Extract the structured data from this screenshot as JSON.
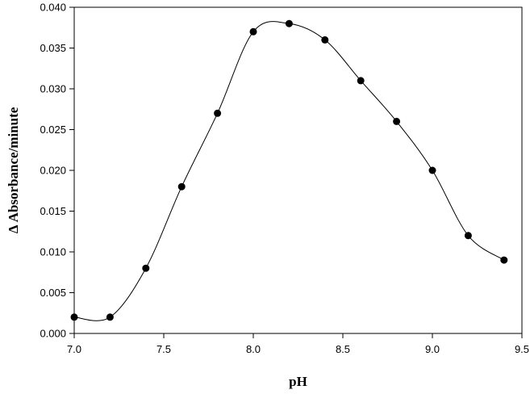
{
  "chart_data": {
    "type": "line",
    "title": "",
    "xlabel": "pH",
    "ylabel": "Δ Absorbance/minute",
    "xlim": [
      7.0,
      9.5
    ],
    "ylim": [
      0.0,
      0.04
    ],
    "xticks": [
      7.0,
      7.5,
      8.0,
      8.5,
      9.0,
      9.5
    ],
    "xtick_labels": [
      "7.0",
      "7.5",
      "8.0",
      "8.5",
      "9.0",
      "9.5"
    ],
    "yticks": [
      0.0,
      0.005,
      0.01,
      0.015,
      0.02,
      0.025,
      0.03,
      0.035,
      0.04
    ],
    "ytick_labels": [
      "0.000",
      "0.005",
      "0.010",
      "0.015",
      "0.020",
      "0.025",
      "0.030",
      "0.035",
      "0.040"
    ],
    "grid": false,
    "legend": "none",
    "series": [
      {
        "x": [
          7.0,
          7.2,
          7.4,
          7.6,
          7.8,
          8.0,
          8.2,
          8.4,
          8.6,
          8.8,
          9.0,
          9.2,
          9.4
        ],
        "y": [
          0.002,
          0.002,
          0.008,
          0.018,
          0.027,
          0.037,
          0.038,
          0.036,
          0.031,
          0.026,
          0.02,
          0.012,
          0.009
        ],
        "marker": "filled-circle",
        "smooth": true,
        "color": "#000000"
      }
    ]
  }
}
